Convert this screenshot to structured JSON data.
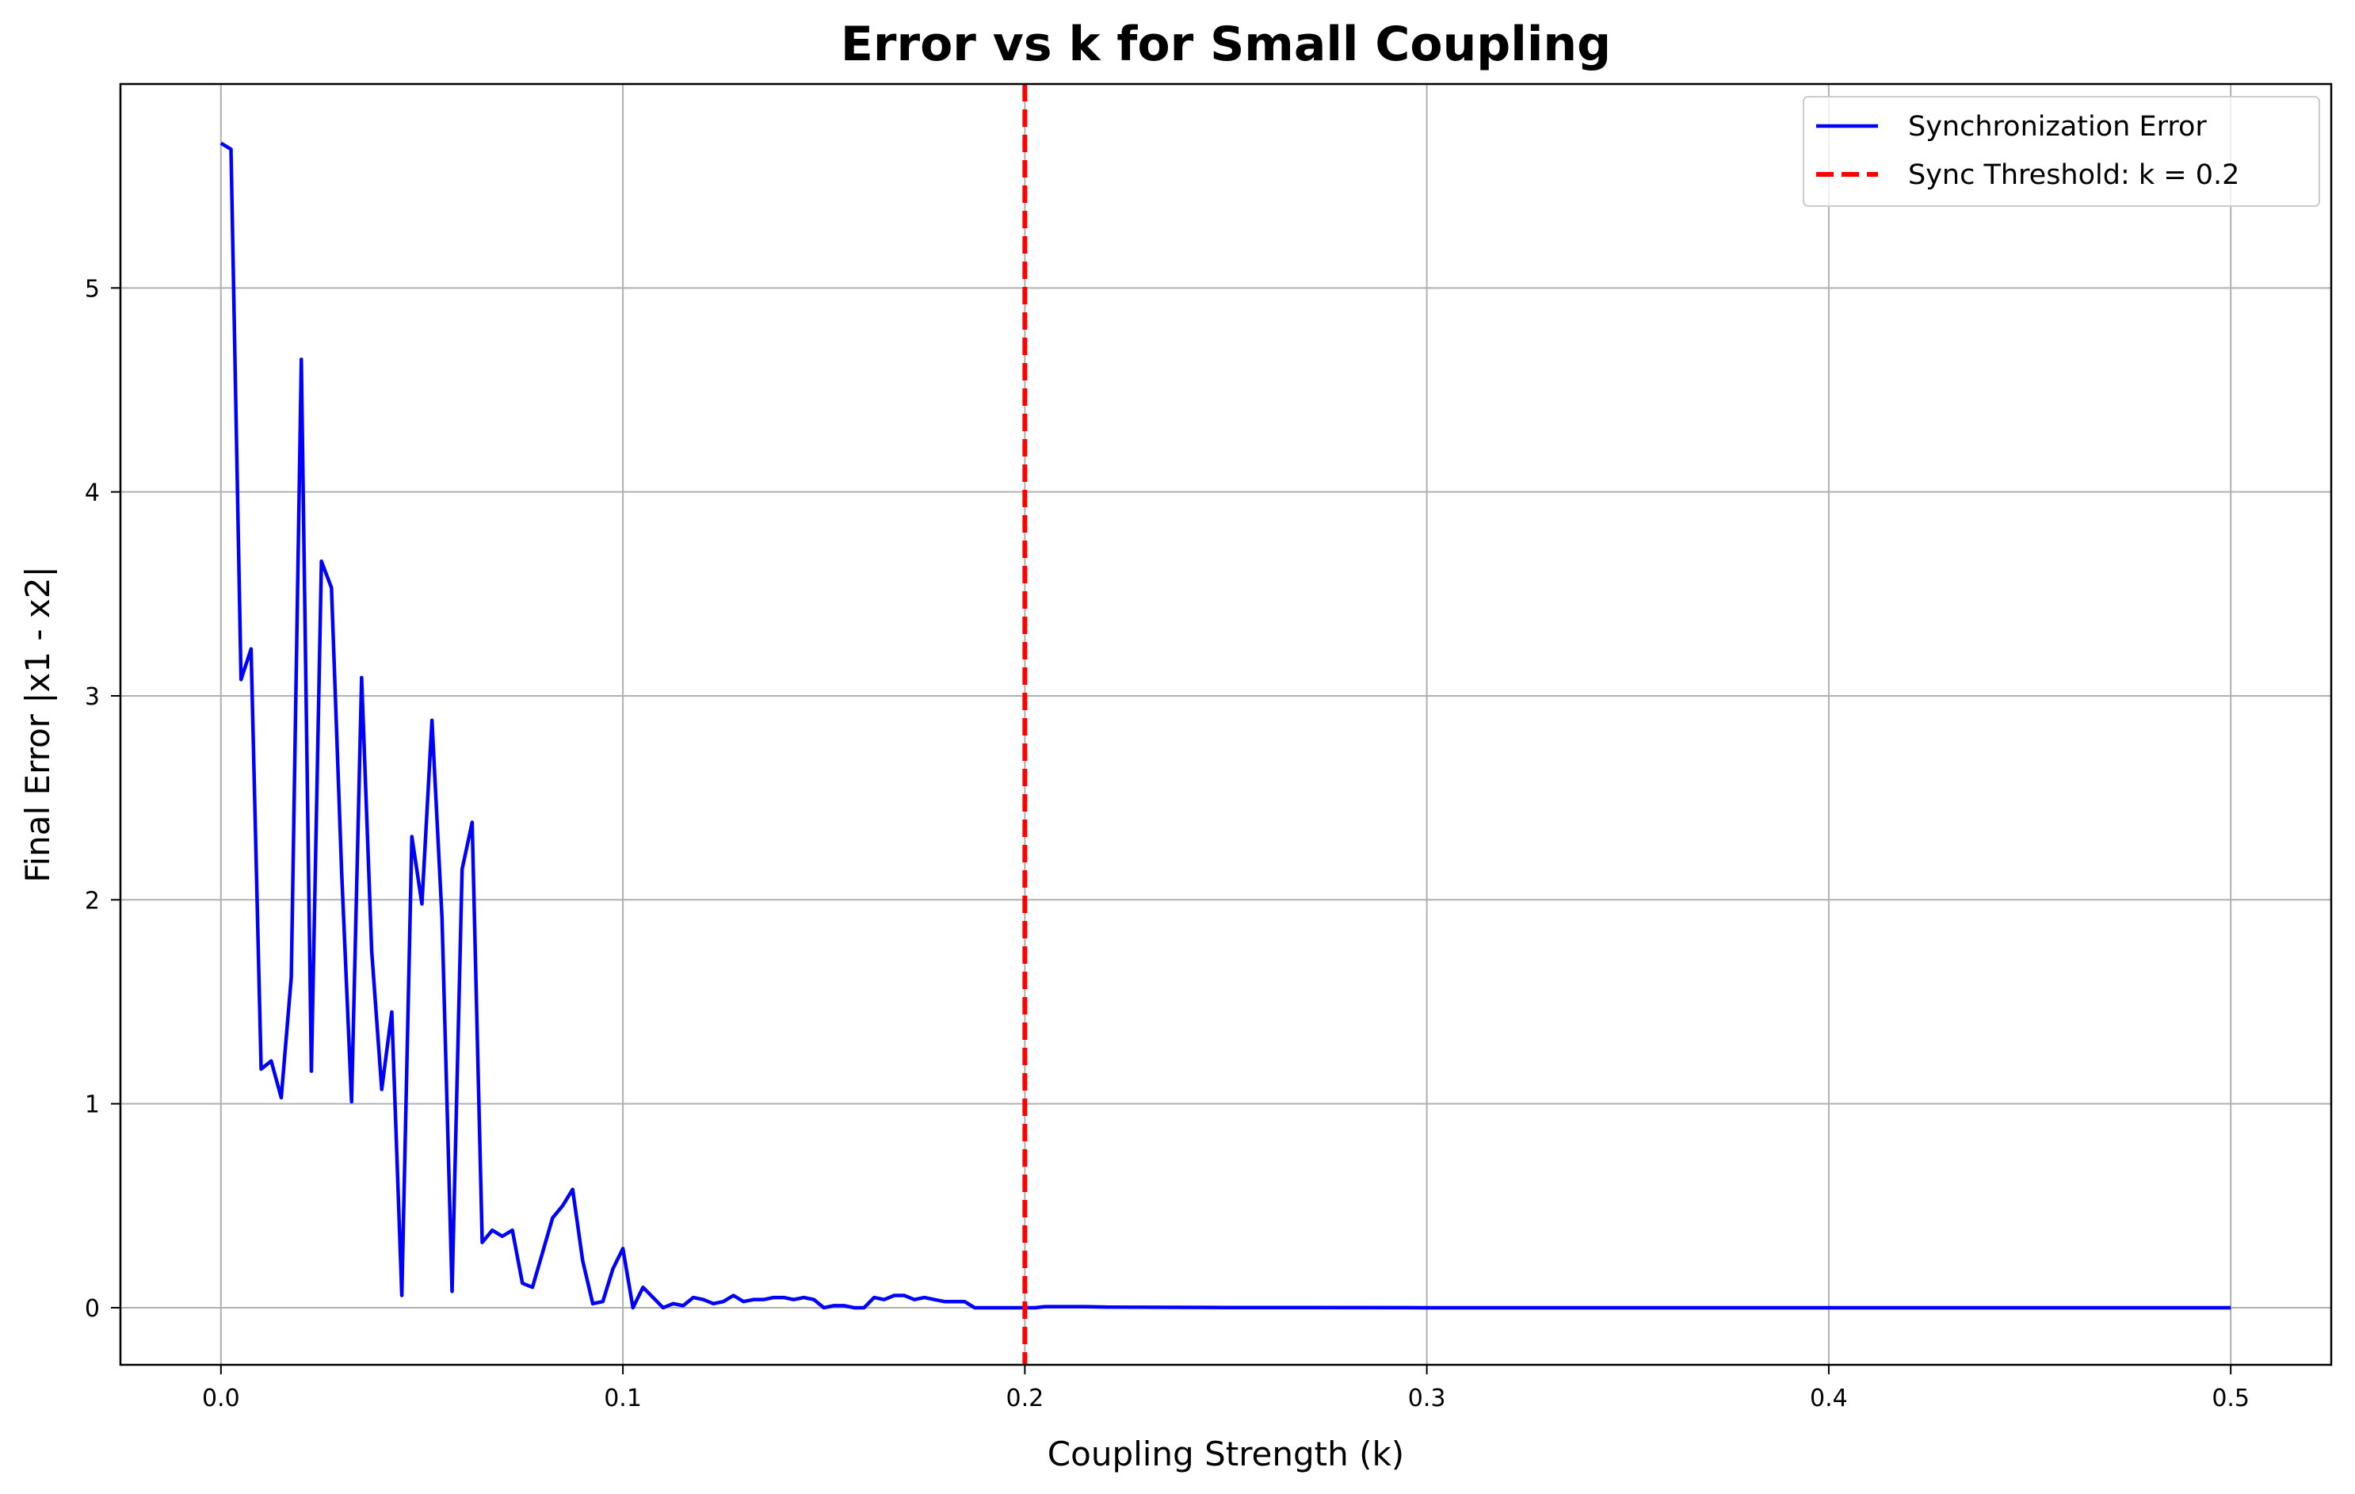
{
  "chart_data": {
    "type": "line",
    "title": "Error vs k for Small Coupling",
    "xlabel": "Coupling Strength (k)",
    "ylabel": "Final Error |x1 - x2|",
    "xlim": [
      -0.025,
      0.525
    ],
    "ylim": [
      -0.28,
      6.0
    ],
    "xticks": [
      0.0,
      0.1,
      0.2,
      0.3,
      0.4,
      0.5
    ],
    "xtick_labels": [
      "0.0",
      "0.1",
      "0.2",
      "0.3",
      "0.4",
      "0.5"
    ],
    "yticks": [
      0,
      1,
      2,
      3,
      4,
      5
    ],
    "ytick_labels": [
      "0",
      "1",
      "2",
      "3",
      "4",
      "5"
    ],
    "grid": true,
    "legend_position": "top-right",
    "series": [
      {
        "name": "Synchronization Error",
        "color": "#0000ff",
        "style": "solid",
        "x": [
          0.0,
          0.0025,
          0.005,
          0.0075,
          0.01,
          0.0125,
          0.015,
          0.0175,
          0.02,
          0.0225,
          0.025,
          0.0275,
          0.03,
          0.0325,
          0.035,
          0.0375,
          0.04,
          0.0425,
          0.045,
          0.0475,
          0.05,
          0.0525,
          0.055,
          0.0575,
          0.06,
          0.0625,
          0.065,
          0.0675,
          0.07,
          0.0725,
          0.075,
          0.0775,
          0.08,
          0.0825,
          0.085,
          0.0875,
          0.09,
          0.0925,
          0.095,
          0.0975,
          0.1,
          0.1025,
          0.105,
          0.1075,
          0.11,
          0.1125,
          0.115,
          0.1175,
          0.12,
          0.1225,
          0.125,
          0.1275,
          0.13,
          0.1325,
          0.135,
          0.1375,
          0.14,
          0.1425,
          0.145,
          0.1475,
          0.15,
          0.1525,
          0.155,
          0.1575,
          0.16,
          0.1625,
          0.165,
          0.1675,
          0.17,
          0.1725,
          0.175,
          0.1775,
          0.18,
          0.1825,
          0.185,
          0.1875,
          0.19,
          0.1925,
          0.195,
          0.1975,
          0.2,
          0.2025,
          0.205,
          0.21,
          0.215,
          0.22,
          0.25,
          0.3,
          0.35,
          0.4,
          0.45,
          0.5
        ],
        "y": [
          5.71,
          5.68,
          3.08,
          3.23,
          1.17,
          1.21,
          1.03,
          1.62,
          4.65,
          1.16,
          3.66,
          3.53,
          2.15,
          1.01,
          3.09,
          1.75,
          1.07,
          1.45,
          0.06,
          2.31,
          1.98,
          2.88,
          1.91,
          0.08,
          2.15,
          2.38,
          0.32,
          0.38,
          0.35,
          0.38,
          0.12,
          0.1,
          0.27,
          0.44,
          0.5,
          0.58,
          0.23,
          0.02,
          0.03,
          0.19,
          0.29,
          0.0,
          0.1,
          0.05,
          0.0,
          0.02,
          0.01,
          0.05,
          0.04,
          0.02,
          0.03,
          0.06,
          0.03,
          0.04,
          0.04,
          0.05,
          0.05,
          0.04,
          0.05,
          0.04,
          0.0,
          0.01,
          0.01,
          0.0,
          0.0,
          0.05,
          0.04,
          0.06,
          0.06,
          0.04,
          0.05,
          0.04,
          0.03,
          0.03,
          0.03,
          0.0,
          0.0,
          0.0,
          0.0,
          0.0,
          0.0,
          0.0,
          0.005,
          0.005,
          0.005,
          0.003,
          0.001,
          0.0,
          0.0,
          0.0,
          0.0,
          0.0
        ]
      }
    ],
    "threshold": {
      "name": "Sync Threshold: k = 0.2",
      "x": 0.2,
      "color": "#ff0000",
      "style": "dashed"
    }
  }
}
